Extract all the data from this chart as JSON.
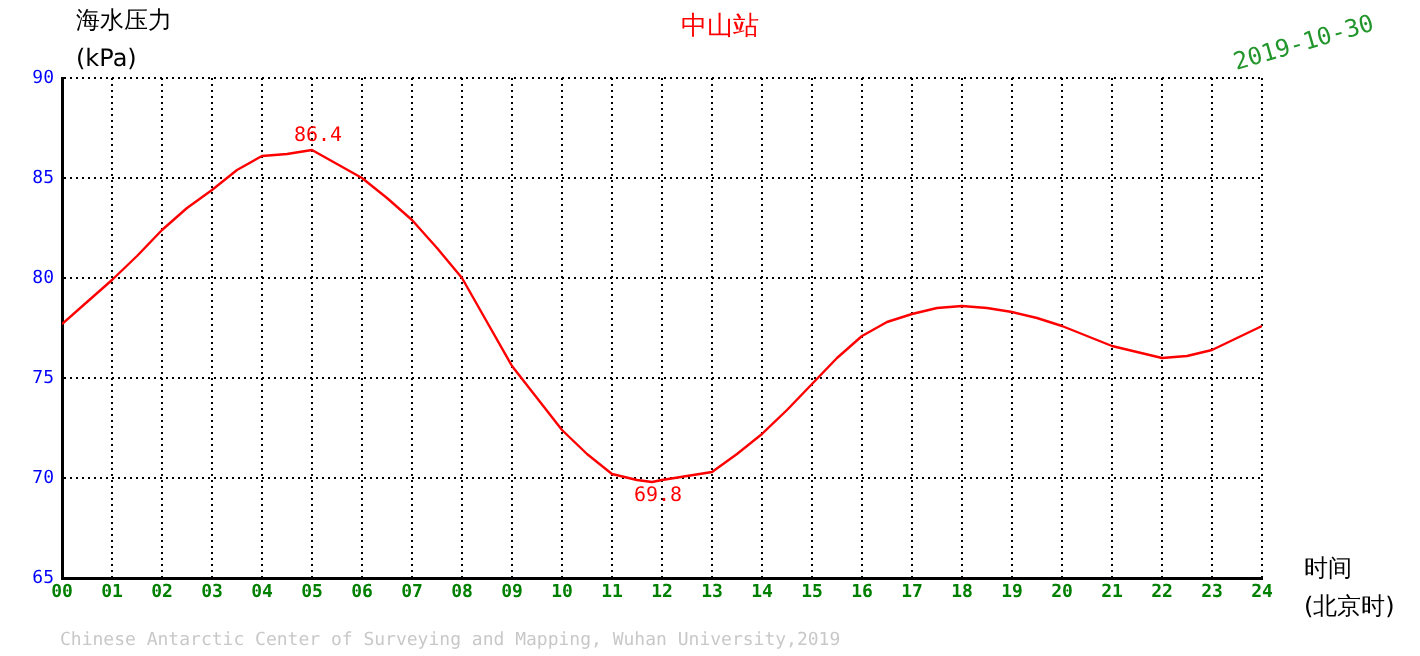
{
  "chart_data": {
    "type": "line",
    "title": "中山站",
    "ylabel": "海水压力\n(kPa)",
    "xlabel": "时间\n(北京时)",
    "x": [
      0,
      0.5,
      1,
      1.5,
      2,
      2.5,
      3,
      3.5,
      4,
      4.5,
      5,
      5.5,
      6,
      6.5,
      7,
      7.5,
      8,
      8.5,
      9,
      9.5,
      10,
      10.5,
      11,
      11.5,
      11.8,
      12,
      12.5,
      13,
      13.5,
      14,
      14.5,
      15,
      15.5,
      16,
      16.5,
      17,
      17.5,
      18,
      18.5,
      19,
      19.5,
      20,
      20.5,
      21,
      21.5,
      22,
      22.5,
      23,
      23.5,
      24
    ],
    "series": [
      {
        "color": "#ff0000",
        "values": [
          77.7,
          78.8,
          79.9,
          81.1,
          82.4,
          83.5,
          84.4,
          85.4,
          86.1,
          86.2,
          86.4,
          85.7,
          85.0,
          84.0,
          82.9,
          81.5,
          80.0,
          77.8,
          75.6,
          74.0,
          72.4,
          71.2,
          70.2,
          69.9,
          69.8,
          69.9,
          70.1,
          70.3,
          71.2,
          72.2,
          73.4,
          74.7,
          76.0,
          77.1,
          77.8,
          78.2,
          78.5,
          78.6,
          78.5,
          78.3,
          78.0,
          77.6,
          77.1,
          76.6,
          76.3,
          76.0,
          76.1,
          76.4,
          77.0,
          77.6
        ]
      }
    ],
    "xlim": [
      0,
      24
    ],
    "xticks": [
      {
        "value": 0,
        "label": "00"
      },
      {
        "value": 1,
        "label": "01"
      },
      {
        "value": 2,
        "label": "02"
      },
      {
        "value": 3,
        "label": "03"
      },
      {
        "value": 4,
        "label": "04"
      },
      {
        "value": 5,
        "label": "05"
      },
      {
        "value": 6,
        "label": "06"
      },
      {
        "value": 7,
        "label": "07"
      },
      {
        "value": 8,
        "label": "08"
      },
      {
        "value": 9,
        "label": "09"
      },
      10,
      11,
      12,
      13,
      14,
      15,
      16,
      17,
      18,
      19,
      20,
      21,
      22,
      23,
      24
    ],
    "ylim": [
      65,
      90
    ],
    "yticks": [
      65,
      70,
      75,
      80,
      85,
      90
    ],
    "grid": true,
    "marker": "none",
    "line_style": "solid",
    "annotations": [
      {
        "text": "86.4",
        "x": 5,
        "y": 86.4
      },
      {
        "text": "69.8",
        "x": 11.8,
        "y": 69.8
      },
      "2019-10-30",
      "Chinese Antarctic Center of Surveying and Mapping, Wuhan University,2019"
    ]
  }
}
